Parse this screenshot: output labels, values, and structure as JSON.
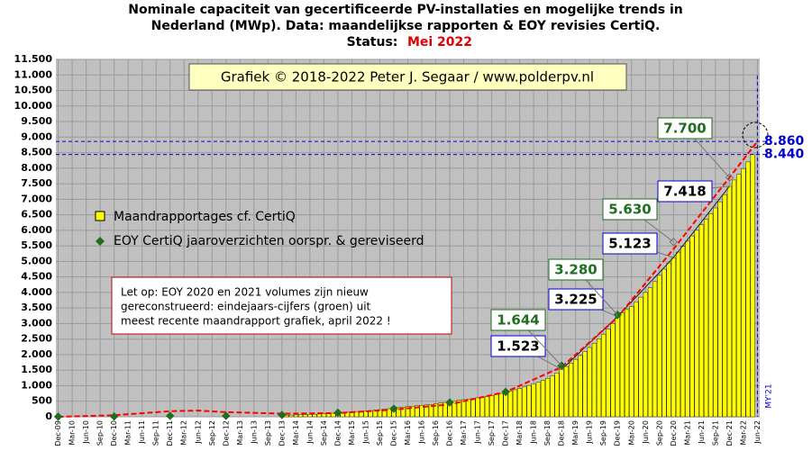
{
  "chart_data": {
    "type": "bar",
    "title": [
      "Nominale capaciteit van gecertificeerde PV-installaties en mogelijke trends in",
      "Nederland (MWp). Data: maandelijkse rapporten & EOY revisies CertiQ."
    ],
    "status_label": "Status:",
    "status_value": "Mei 2022",
    "copyright": "Grafiek © 2018-2022 Peter J. Segaar / www.polderpv.nl",
    "note": [
      "Let op: EOY 2020 en 2021 volumes zijn nieuw",
      "gereconstrueerd: eindejaars-cijfers (groen) uit",
      "meest recente maandrapport grafiek, april 2022 !"
    ],
    "side_label": "MY'21",
    "categories": [
      "Dec-09",
      null,
      null,
      "Mar-10",
      null,
      null,
      "Jun-10",
      null,
      null,
      "Sep-10",
      null,
      null,
      "Dec-10",
      null,
      null,
      "Mar-11",
      null,
      null,
      "Jun-11",
      null,
      null,
      "Sep-11",
      null,
      null,
      "Dec-11",
      null,
      null,
      "Mar-12",
      null,
      null,
      "Jun-12",
      null,
      null,
      "Sep-12",
      null,
      null,
      "Dec-12",
      null,
      null,
      "Mar-13",
      null,
      null,
      "Jun-13",
      null,
      null,
      "Sep-13",
      null,
      null,
      "Dec-13",
      null,
      null,
      "Mar-14",
      null,
      null,
      "Jun-14",
      null,
      null,
      "Sep-14",
      null,
      null,
      "Dec-14",
      null,
      null,
      "Mar-15",
      null,
      null,
      "Jun-15",
      null,
      null,
      "Sep-15",
      null,
      null,
      "Dec-15",
      null,
      null,
      "Mar-16",
      null,
      null,
      "Jun-16",
      null,
      null,
      "Sep-16",
      null,
      null,
      "Dec-16",
      null,
      null,
      "Mar-17",
      null,
      null,
      "Jun-17",
      null,
      null,
      "Sep-17",
      null,
      null,
      "Dec-17",
      null,
      null,
      "Mar-18",
      null,
      null,
      "Jun-18",
      null,
      null,
      "Sep-18",
      null,
      null,
      "Dec-18",
      null,
      null,
      "Mar-19",
      null,
      null,
      "Jun-19",
      null,
      null,
      "Sep-19",
      null,
      null,
      "Dec-19",
      null,
      null,
      "Mar-20",
      null,
      null,
      "Jun-20",
      null,
      null,
      "Sep-20",
      null,
      null,
      "Dec-20",
      null,
      null,
      "Mar-21",
      null,
      null,
      "Jun-21",
      null,
      null,
      "Sep-21",
      null,
      null,
      "Dec-21",
      null,
      null,
      "Mar-22",
      null,
      null,
      "Jun-22"
    ],
    "series": [
      {
        "name": "Maandrapportages cf. CertiQ",
        "color": "#ffff00",
        "values": [
          null,
          null,
          null,
          null,
          null,
          null,
          null,
          null,
          null,
          null,
          null,
          null,
          null,
          null,
          null,
          null,
          null,
          null,
          null,
          null,
          null,
          null,
          null,
          null,
          null,
          null,
          null,
          null,
          null,
          null,
          null,
          null,
          null,
          null,
          null,
          null,
          null,
          null,
          null,
          null,
          null,
          null,
          null,
          null,
          null,
          null,
          null,
          null,
          40,
          50,
          55,
          60,
          65,
          70,
          75,
          80,
          88,
          95,
          105,
          115,
          130,
          140,
          150,
          160,
          170,
          180,
          190,
          200,
          215,
          230,
          245,
          260,
          280,
          295,
          310,
          325,
          340,
          355,
          370,
          385,
          400,
          420,
          440,
          460,
          490,
          510,
          530,
          550,
          570,
          590,
          610,
          630,
          660,
          690,
          720,
          750,
          790,
          830,
          870,
          910,
          960,
          1010,
          1060,
          1110,
          1170,
          1240,
          1320,
          1410,
          1523,
          1620,
          1730,
          1850,
          1970,
          2100,
          2230,
          2370,
          2510,
          2660,
          2820,
          3000,
          3225,
          3350,
          3450,
          3550,
          3700,
          3850,
          4000,
          4150,
          4350,
          4550,
          4750,
          4950,
          5123,
          5300,
          5480,
          5650,
          5820,
          6000,
          6180,
          6360,
          6540,
          6720,
          6920,
          7150,
          7418,
          7620,
          7800,
          7990,
          8200,
          8440,
          null
        ],
        "callouts": [
          {
            "index": 108,
            "label": "1.523"
          },
          {
            "index": 120,
            "label": "3.225"
          },
          {
            "index": 132,
            "label": "5.123"
          },
          {
            "index": 144,
            "label": "7.418"
          }
        ]
      },
      {
        "name": "EOY CertiQ jaaroverzichten oorspr. & gereviseerd",
        "color": "#1e6e1e",
        "x": [
          0,
          12,
          24,
          36,
          48,
          60,
          72,
          84,
          96,
          108,
          120,
          132,
          144
        ],
        "values": [
          5,
          10,
          30,
          30,
          60,
          130,
          260,
          460,
          800,
          1644,
          3280,
          5630,
          7700
        ],
        "value_labels": [
          null,
          null,
          null,
          null,
          null,
          null,
          null,
          null,
          null,
          "1.644",
          "3.280",
          "5.630",
          "7.700"
        ]
      }
    ],
    "trend": {
      "color": "#ff0000",
      "x": [
        0,
        12,
        24,
        30,
        36,
        48,
        60,
        72,
        84,
        96,
        108,
        120,
        132,
        144,
        150
      ],
      "values": [
        0,
        50,
        180,
        200,
        150,
        100,
        120,
        230,
        400,
        800,
        1600,
        3200,
        5400,
        7700,
        8860
      ]
    },
    "hlines": [
      {
        "value": 8860,
        "label": "8.860"
      },
      {
        "value": 8440,
        "label": "8.440"
      }
    ],
    "ylim": [
      0,
      11500
    ],
    "yticks": [
      0,
      500,
      {
        "value": 1000,
        "label": "1.000"
      },
      {
        "value": 1500,
        "label": "1.500"
      },
      {
        "value": 2000,
        "label": "2.000"
      },
      {
        "value": 2500,
        "label": "2.500"
      },
      {
        "value": 3000,
        "label": "3.000"
      },
      {
        "value": 3500,
        "label": "3.500"
      },
      {
        "value": 4000,
        "label": "4.000"
      },
      {
        "value": 4500,
        "label": "4.500"
      },
      {
        "value": 5000,
        "label": "5.000"
      },
      {
        "value": 5500,
        "label": "5.500"
      },
      {
        "value": 6000,
        "label": "6.000"
      },
      {
        "value": 6500,
        "label": "6.500"
      },
      {
        "value": 7000,
        "label": "7.000"
      },
      {
        "value": 7500,
        "label": "7.500"
      },
      {
        "value": 8000,
        "label": "8.000"
      },
      {
        "value": 8500,
        "label": "8.500"
      },
      {
        "value": 9000,
        "label": "9.000"
      },
      {
        "value": 9500,
        "label": "9.500"
      },
      {
        "value": 10000,
        "label": "10.000"
      },
      {
        "value": 10500,
        "label": "10.500"
      },
      {
        "value": 11000,
        "label": "11.000"
      },
      {
        "value": 11500,
        "label": "11.500"
      }
    ],
    "grid": true
  }
}
